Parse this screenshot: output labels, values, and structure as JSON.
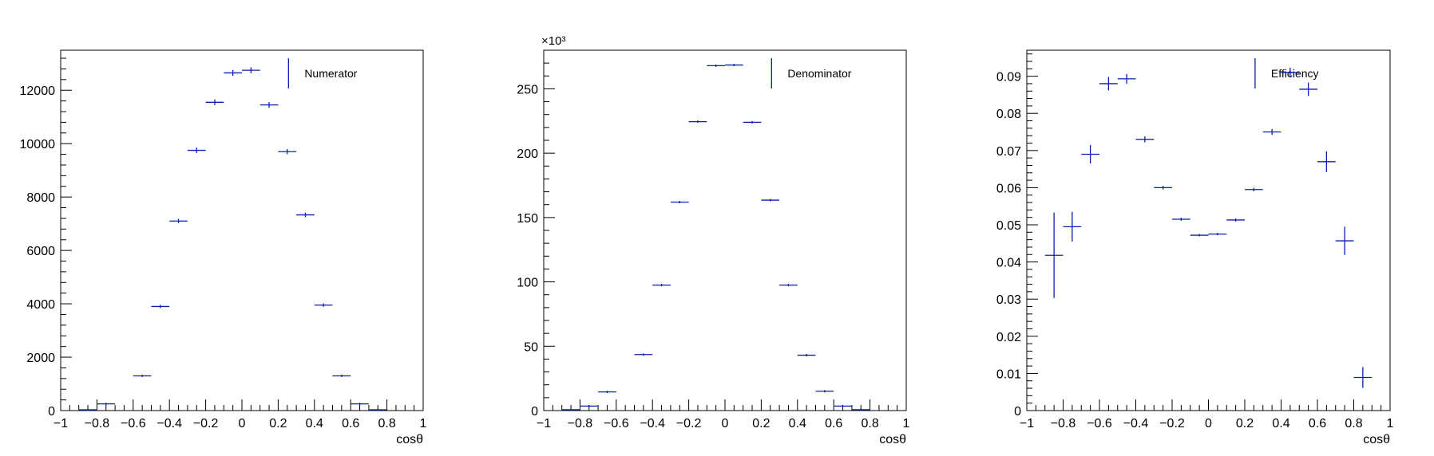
{
  "colors": {
    "marker": "#0b1fa8",
    "axis": "#000000",
    "legend_bg": "#ffffff"
  },
  "chart_data": [
    {
      "type": "scatter",
      "title": "",
      "xlabel": "cosθ",
      "ylabel": "",
      "xlim": [
        -1,
        1
      ],
      "ylim": [
        0,
        13500
      ],
      "yticks": [
        0,
        2000,
        4000,
        6000,
        8000,
        10000,
        12000
      ],
      "ytick_labels": [
        "0",
        "2000",
        "4000",
        "6000",
        "8000",
        "10000",
        "12000"
      ],
      "xticks": [
        -1,
        -0.8,
        -0.6,
        -0.4,
        -0.2,
        0,
        0.2,
        0.4,
        0.6,
        0.8,
        1
      ],
      "xtick_labels": [
        "−1",
        "−0.8",
        "−0.6",
        "−0.4",
        "−0.2",
        "0",
        "0.2",
        "0.4",
        "0.6",
        "0.8",
        "1"
      ],
      "multiplier": "",
      "legend": {
        "label": "Numerator",
        "position": "top-right"
      },
      "series": [
        {
          "name": "Numerator",
          "x": [
            -0.85,
            -0.75,
            -0.55,
            -0.45,
            -0.35,
            -0.25,
            -0.15,
            -0.05,
            0.05,
            0.15,
            0.25,
            0.35,
            0.45,
            0.55,
            0.65,
            0.75
          ],
          "values": [
            30,
            250,
            1300,
            3900,
            7100,
            9750,
            11550,
            12650,
            12750,
            11450,
            9700,
            7330,
            3950,
            1300,
            250,
            30
          ],
          "yerr": [
            5,
            16,
            36,
            62,
            84,
            99,
            107,
            112,
            113,
            107,
            98,
            86,
            63,
            36,
            16,
            5
          ],
          "xerr": 0.05
        }
      ]
    },
    {
      "type": "scatter",
      "title": "",
      "xlabel": "cosθ",
      "ylabel": "",
      "xlim": [
        -1,
        1
      ],
      "ylim": [
        0,
        280
      ],
      "yticks": [
        0,
        50,
        100,
        150,
        200,
        250
      ],
      "ytick_labels": [
        "0",
        "50",
        "100",
        "150",
        "200",
        "250"
      ],
      "xticks": [
        -1,
        -0.8,
        -0.6,
        -0.4,
        -0.2,
        0,
        0.2,
        0.4,
        0.6,
        0.8,
        1
      ],
      "xtick_labels": [
        "−1",
        "−0.8",
        "−0.6",
        "−0.4",
        "−0.2",
        "0",
        "0.2",
        "0.4",
        "0.6",
        "0.8",
        "1"
      ],
      "multiplier": "×10³",
      "legend": {
        "label": "Denominator",
        "position": "top-right"
      },
      "series": [
        {
          "name": "Denominator",
          "x": [
            -0.85,
            -0.75,
            -0.65,
            -0.45,
            -0.35,
            -0.25,
            -0.15,
            -0.05,
            0.05,
            0.15,
            0.25,
            0.35,
            0.45,
            0.55,
            0.65,
            0.75
          ],
          "values": [
            0.7,
            3.5,
            14.5,
            43.5,
            97.5,
            162,
            224.5,
            268,
            268.5,
            224,
            163.5,
            97.5,
            43,
            15,
            3.5,
            0.7
          ],
          "yerr": [
            0.03,
            0.06,
            0.12,
            0.21,
            0.31,
            0.4,
            0.47,
            0.52,
            0.52,
            0.47,
            0.4,
            0.31,
            0.21,
            0.12,
            0.06,
            0.03
          ],
          "xerr": 0.05
        }
      ]
    },
    {
      "type": "scatter",
      "title": "",
      "xlabel": "cosθ",
      "ylabel": "",
      "xlim": [
        -1,
        1
      ],
      "ylim": [
        0,
        0.097
      ],
      "yticks": [
        0,
        0.01,
        0.02,
        0.03,
        0.04,
        0.05,
        0.06,
        0.07,
        0.08,
        0.09
      ],
      "ytick_labels": [
        "0",
        "0.01",
        "0.02",
        "0.03",
        "0.04",
        "0.05",
        "0.06",
        "0.07",
        "0.08",
        "0.09"
      ],
      "xticks": [
        -1,
        -0.8,
        -0.6,
        -0.4,
        -0.2,
        0,
        0.2,
        0.4,
        0.6,
        0.8,
        1
      ],
      "xtick_labels": [
        "−1",
        "−0.8",
        "−0.6",
        "−0.4",
        "−0.2",
        "0",
        "0.2",
        "0.4",
        "0.6",
        "0.8",
        "1"
      ],
      "multiplier": "",
      "legend": {
        "label": "Efficiency",
        "position": "top-right"
      },
      "series": [
        {
          "name": "Efficiency",
          "x": [
            -0.85,
            -0.75,
            -0.65,
            -0.55,
            -0.45,
            -0.35,
            -0.25,
            -0.15,
            -0.05,
            0.05,
            0.15,
            0.25,
            0.35,
            0.45,
            0.55,
            0.65,
            0.75,
            0.85
          ],
          "values": [
            0.0418,
            0.0495,
            0.069,
            0.088,
            0.0893,
            0.073,
            0.06,
            0.0515,
            0.0472,
            0.0475,
            0.0513,
            0.0595,
            0.075,
            0.091,
            0.0865,
            0.067,
            0.0457,
            0.0089
          ],
          "yerr": [
            0.0115,
            0.004,
            0.0025,
            0.0018,
            0.0013,
            0.0008,
            0.0005,
            0.0004,
            0.0003,
            0.0003,
            0.0004,
            0.0005,
            0.0008,
            0.0013,
            0.0018,
            0.0028,
            0.0038,
            0.0028
          ],
          "xerr": 0.05
        }
      ]
    }
  ]
}
